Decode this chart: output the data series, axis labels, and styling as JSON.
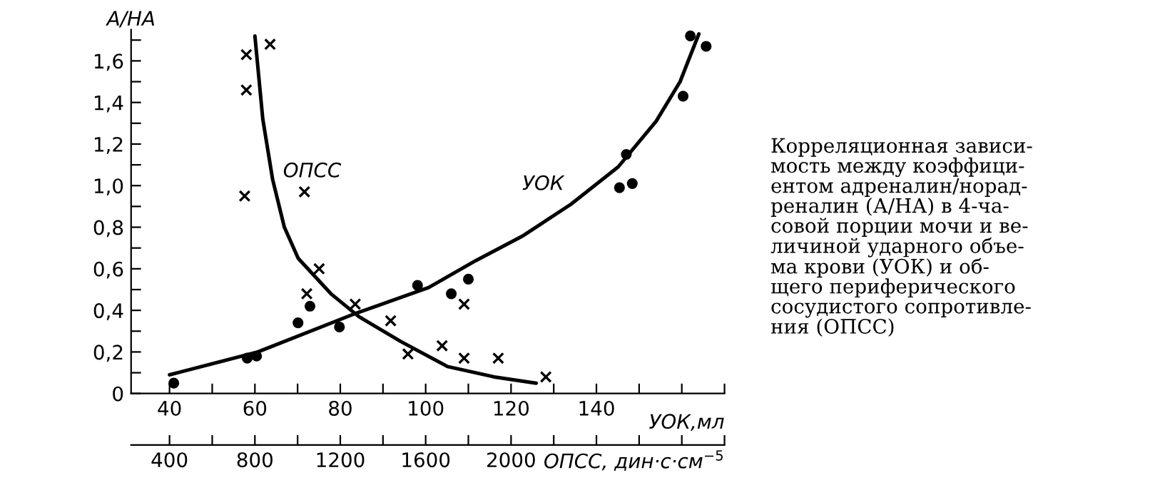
{
  "chart_data": {
    "type": "scatter",
    "ylabel": "А/НА",
    "xlabel": "УОК,мл",
    "x2label": "ОПСС, дин·с·см$^{−5}$",
    "xlim": [
      31,
      170
    ],
    "x2lim": [
      220,
      3000
    ],
    "ylim": [
      0,
      1.75
    ],
    "xticks": [
      40,
      {
        "value": 50,
        "label": null
      },
      60,
      {
        "value": 70,
        "label": null
      },
      80,
      {
        "value": 90,
        "label": null
      },
      100,
      {
        "value": 110,
        "label": null
      },
      120,
      {
        "value": 130,
        "label": null
      },
      140,
      {
        "value": 150,
        "label": null
      },
      {
        "value": 160,
        "label": null
      },
      {
        "value": 170,
        "label": null
      }
    ],
    "x2ticks": [
      400,
      {
        "value": 600,
        "label": null
      },
      800,
      {
        "value": 1000,
        "label": null
      },
      1200,
      {
        "value": 1400,
        "label": null
      },
      1600,
      {
        "value": 1800,
        "label": null
      },
      2000,
      {
        "value": 2200,
        "label": null
      },
      {
        "value": 2400,
        "label": null
      },
      {
        "value": 2600,
        "label": null
      },
      {
        "value": 2800,
        "label": null
      },
      {
        "value": 3000,
        "label": null
      }
    ],
    "yticks": [
      0,
      {
        "value": 0.1,
        "label": null
      },
      {
        "value": 0.2,
        "label": "0,2"
      },
      {
        "value": 0.3,
        "label": null
      },
      {
        "value": 0.4,
        "label": "0,4"
      },
      {
        "value": 0.5,
        "label": null
      },
      {
        "value": 0.6,
        "label": "0,6"
      },
      {
        "value": 0.7,
        "label": null
      },
      {
        "value": 0.8,
        "label": "0,8"
      },
      {
        "value": 0.9,
        "label": null
      },
      {
        "value": 1.0,
        "label": "1,0"
      },
      {
        "value": 1.1,
        "label": null
      },
      {
        "value": 1.2,
        "label": "1,2"
      },
      {
        "value": 1.3,
        "label": null
      },
      {
        "value": 1.4,
        "label": "1,4"
      },
      {
        "value": 1.5,
        "label": null
      },
      {
        "value": 1.6,
        "label": "1,6"
      },
      {
        "value": 1.7,
        "label": null
      }
    ],
    "grid": false,
    "legend": false,
    "series": [
      {
        "marker": "circle",
        "color": "#000000",
        "x": [
          41,
          58.2,
          60.4,
          70.1,
          72.9,
          79.8,
          98.1,
          106,
          110,
          147,
          145.4,
          148.4,
          160.3,
          162,
          165.7
        ],
        "values": [
          0.05,
          0.17,
          0.18,
          0.34,
          0.42,
          0.32,
          0.52,
          0.48,
          0.55,
          1.15,
          0.99,
          1.01,
          1.43,
          1.72,
          1.67
        ]
      },
      {
        "type": "line",
        "name": "УОК",
        "marker": "none",
        "line_style": "solid",
        "color": "#000000",
        "x": [
          40,
          60.7,
          82.9,
          100.7,
          111.8,
          122.9,
          134,
          145.1,
          154,
          159.6,
          164
        ],
        "values": [
          0.09,
          0.2,
          0.38,
          0.51,
          0.64,
          0.76,
          0.91,
          1.09,
          1.31,
          1.5,
          1.73
        ]
      },
      {
        "axis": "x2",
        "marker": "cross",
        "color": "#000000",
        "x": [
          760,
          871,
          760,
          752,
          1032,
          1101,
          1043,
          1270,
          1436,
          1517,
          1677,
          1780,
          1780,
          1940,
          2163
        ],
        "values": [
          1.63,
          1.68,
          1.46,
          0.95,
          0.97,
          0.6,
          0.48,
          0.43,
          0.35,
          0.19,
          0.23,
          0.17,
          0.43,
          0.17,
          0.08
        ]
      },
      {
        "type": "line",
        "axis": "x2",
        "name": "ОПСС",
        "marker": "none",
        "line_style": "solid",
        "color": "#000000",
        "x": [
          800,
          837,
          883,
          938,
          1003,
          1156,
          1287,
          1484,
          1702,
          1921,
          2118
        ],
        "values": [
          1.72,
          1.32,
          1.03,
          0.8,
          0.65,
          0.48,
          0.37,
          0.25,
          0.13,
          0.08,
          0.05
        ]
      }
    ],
    "annotations": [
      "Корреляционная зависи-\nмость между коэффици-\nентом адреналин/норад-\nреналин (А/НА) в 4-ча-\nсовой порции мочи и ве-\nличиной ударного объе-\nма крови (УОК) и об-\nщего периферического\nсосудистого сопротивле-\nния (ОПСС)"
    ]
  }
}
